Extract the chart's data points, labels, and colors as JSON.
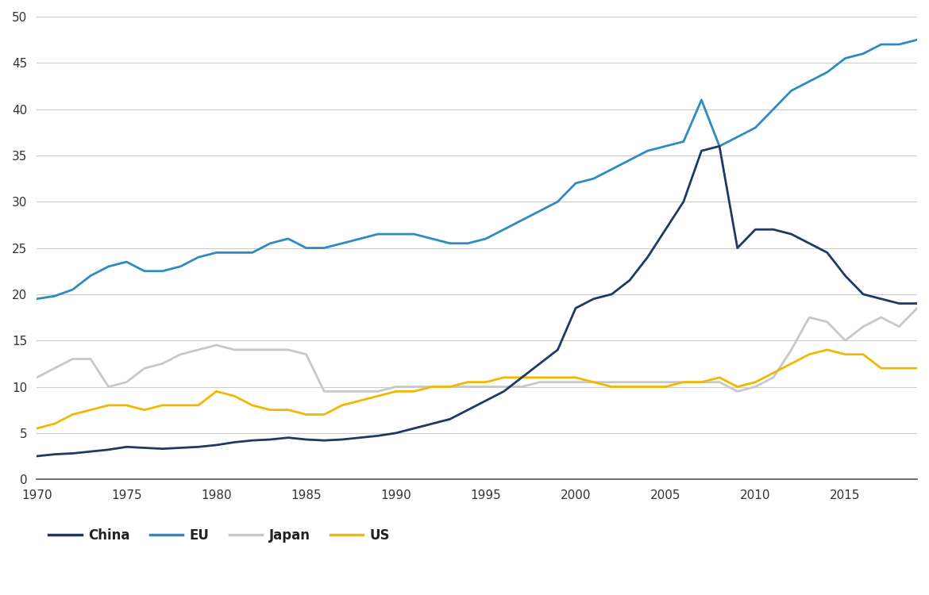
{
  "background_color": "#ffffff",
  "grid_color": "#cccccc",
  "ylim": [
    0,
    50
  ],
  "yticks": [
    0,
    5,
    10,
    15,
    20,
    25,
    30,
    35,
    40,
    45,
    50
  ],
  "xlim": [
    1970,
    2019
  ],
  "xticks": [
    1970,
    1975,
    1980,
    1985,
    1990,
    1995,
    2000,
    2005,
    2010,
    2015
  ],
  "series": {
    "China": {
      "color": "#1f3864",
      "linewidth": 2.0,
      "data": {
        "years": [
          1970,
          1971,
          1972,
          1973,
          1974,
          1975,
          1976,
          1977,
          1978,
          1979,
          1980,
          1981,
          1982,
          1983,
          1984,
          1985,
          1986,
          1987,
          1988,
          1989,
          1990,
          1991,
          1992,
          1993,
          1994,
          1995,
          1996,
          1997,
          1998,
          1999,
          2000,
          2001,
          2002,
          2003,
          2004,
          2005,
          2006,
          2007,
          2008,
          2009,
          2010,
          2011,
          2012,
          2013,
          2014,
          2015,
          2016,
          2017,
          2018,
          2019
        ],
        "values": [
          2.5,
          2.7,
          2.8,
          3.0,
          3.2,
          3.5,
          3.4,
          3.3,
          3.4,
          3.5,
          3.7,
          4.0,
          4.2,
          4.3,
          4.5,
          4.3,
          4.2,
          4.3,
          4.5,
          4.7,
          5.0,
          5.5,
          6.0,
          6.5,
          7.5,
          8.5,
          9.5,
          11.0,
          12.5,
          14.0,
          18.5,
          19.5,
          20.0,
          21.5,
          24.0,
          27.0,
          30.0,
          35.5,
          36.0,
          25.0,
          27.0,
          27.0,
          26.5,
          25.5,
          24.5,
          22.0,
          20.0,
          19.5,
          19.0,
          19.0
        ]
      }
    },
    "EU": {
      "color": "#2e8bc0",
      "linewidth": 2.0,
      "data": {
        "years": [
          1970,
          1971,
          1972,
          1973,
          1974,
          1975,
          1976,
          1977,
          1978,
          1979,
          1980,
          1981,
          1982,
          1983,
          1984,
          1985,
          1986,
          1987,
          1988,
          1989,
          1990,
          1991,
          1992,
          1993,
          1994,
          1995,
          1996,
          1997,
          1998,
          1999,
          2000,
          2001,
          2002,
          2003,
          2004,
          2005,
          2006,
          2007,
          2008,
          2009,
          2010,
          2011,
          2012,
          2013,
          2014,
          2015,
          2016,
          2017,
          2018,
          2019
        ],
        "values": [
          19.5,
          19.8,
          20.5,
          22.0,
          23.0,
          23.5,
          22.5,
          22.5,
          23.0,
          24.0,
          24.5,
          24.5,
          24.5,
          25.5,
          26.0,
          25.0,
          25.0,
          25.5,
          26.0,
          26.5,
          26.5,
          26.5,
          26.0,
          25.5,
          25.5,
          26.0,
          27.0,
          28.0,
          29.0,
          30.0,
          32.0,
          32.5,
          33.5,
          34.5,
          35.5,
          36.0,
          36.5,
          41.0,
          36.0,
          37.0,
          38.0,
          40.0,
          42.0,
          43.0,
          44.0,
          45.5,
          46.0,
          47.0,
          47.0,
          47.5
        ]
      }
    },
    "Japan": {
      "color": "#c8c8c8",
      "linewidth": 2.0,
      "data": {
        "years": [
          1970,
          1971,
          1972,
          1973,
          1974,
          1975,
          1976,
          1977,
          1978,
          1979,
          1980,
          1981,
          1982,
          1983,
          1984,
          1985,
          1986,
          1987,
          1988,
          1989,
          1990,
          1991,
          1992,
          1993,
          1994,
          1995,
          1996,
          1997,
          1998,
          1999,
          2000,
          2001,
          2002,
          2003,
          2004,
          2005,
          2006,
          2007,
          2008,
          2009,
          2010,
          2011,
          2012,
          2013,
          2014,
          2015,
          2016,
          2017,
          2018,
          2019
        ],
        "values": [
          11.0,
          12.0,
          13.0,
          13.0,
          10.0,
          10.5,
          12.0,
          12.5,
          13.5,
          14.0,
          14.5,
          14.0,
          14.0,
          14.0,
          14.0,
          13.5,
          9.5,
          9.5,
          9.5,
          9.5,
          10.0,
          10.0,
          10.0,
          10.0,
          10.0,
          10.0,
          10.0,
          10.0,
          10.5,
          10.5,
          10.5,
          10.5,
          10.5,
          10.5,
          10.5,
          10.5,
          10.5,
          10.5,
          10.5,
          9.5,
          10.0,
          11.0,
          14.0,
          17.5,
          17.0,
          15.0,
          16.5,
          17.5,
          16.5,
          18.5
        ]
      }
    },
    "US": {
      "color": "#f0b800",
      "linewidth": 2.0,
      "data": {
        "years": [
          1970,
          1971,
          1972,
          1973,
          1974,
          1975,
          1976,
          1977,
          1978,
          1979,
          1980,
          1981,
          1982,
          1983,
          1984,
          1985,
          1986,
          1987,
          1988,
          1989,
          1990,
          1991,
          1992,
          1993,
          1994,
          1995,
          1996,
          1997,
          1998,
          1999,
          2000,
          2001,
          2002,
          2003,
          2004,
          2005,
          2006,
          2007,
          2008,
          2009,
          2010,
          2011,
          2012,
          2013,
          2014,
          2015,
          2016,
          2017,
          2018,
          2019
        ],
        "values": [
          5.5,
          6.0,
          7.0,
          7.5,
          8.0,
          8.0,
          7.5,
          8.0,
          8.0,
          8.0,
          9.5,
          9.0,
          8.0,
          7.5,
          7.5,
          7.0,
          7.0,
          8.0,
          8.5,
          9.0,
          9.5,
          9.5,
          10.0,
          10.0,
          10.5,
          10.5,
          11.0,
          11.0,
          11.0,
          11.0,
          11.0,
          10.5,
          10.0,
          10.0,
          10.0,
          10.0,
          10.5,
          10.5,
          11.0,
          10.0,
          10.5,
          11.5,
          12.5,
          13.5,
          14.0,
          13.5,
          13.5,
          12.0,
          12.0,
          12.0
        ]
      }
    }
  },
  "legend_entries": [
    "China",
    "EU",
    "Japan",
    "US"
  ]
}
